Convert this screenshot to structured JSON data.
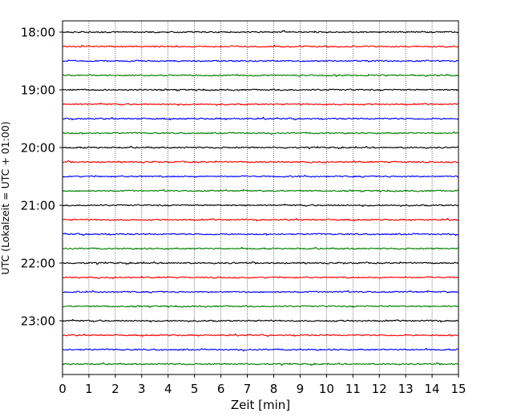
{
  "chart_data": {
    "type": "line",
    "title": "",
    "xlabel": "Zeit  [min]",
    "ylabel": "UTC (Lokalzeit = UTC + 01:00)",
    "xlim": [
      0,
      15
    ],
    "x_ticks": [
      0,
      1,
      2,
      3,
      4,
      5,
      6,
      7,
      8,
      9,
      10,
      11,
      12,
      13,
      14,
      15
    ],
    "y_tick_labels": [
      "18:00",
      "19:00",
      "20:00",
      "21:00",
      "22:00",
      "23:00"
    ],
    "trace_interval_min": 15,
    "grid": "vertical dotted",
    "series_colors": [
      "#000000",
      "#ff0000",
      "#0000ff",
      "#008000"
    ],
    "traces": [
      {
        "start": "18:00",
        "color": "#000000"
      },
      {
        "start": "18:15",
        "color": "#ff0000"
      },
      {
        "start": "18:30",
        "color": "#0000ff"
      },
      {
        "start": "18:45",
        "color": "#008000"
      },
      {
        "start": "19:00",
        "color": "#000000"
      },
      {
        "start": "19:15",
        "color": "#ff0000"
      },
      {
        "start": "19:30",
        "color": "#0000ff"
      },
      {
        "start": "19:45",
        "color": "#008000"
      },
      {
        "start": "20:00",
        "color": "#000000"
      },
      {
        "start": "20:15",
        "color": "#ff0000"
      },
      {
        "start": "20:30",
        "color": "#0000ff"
      },
      {
        "start": "20:45",
        "color": "#008000"
      },
      {
        "start": "21:00",
        "color": "#000000"
      },
      {
        "start": "21:15",
        "color": "#ff0000"
      },
      {
        "start": "21:30",
        "color": "#0000ff"
      },
      {
        "start": "21:45",
        "color": "#008000"
      },
      {
        "start": "22:00",
        "color": "#000000"
      },
      {
        "start": "22:15",
        "color": "#ff0000"
      },
      {
        "start": "22:30",
        "color": "#0000ff"
      },
      {
        "start": "22:45",
        "color": "#008000"
      },
      {
        "start": "23:00",
        "color": "#000000"
      },
      {
        "start": "23:15",
        "color": "#ff0000"
      },
      {
        "start": "23:30",
        "color": "#0000ff"
      },
      {
        "start": "23:45",
        "color": "#008000"
      }
    ]
  }
}
